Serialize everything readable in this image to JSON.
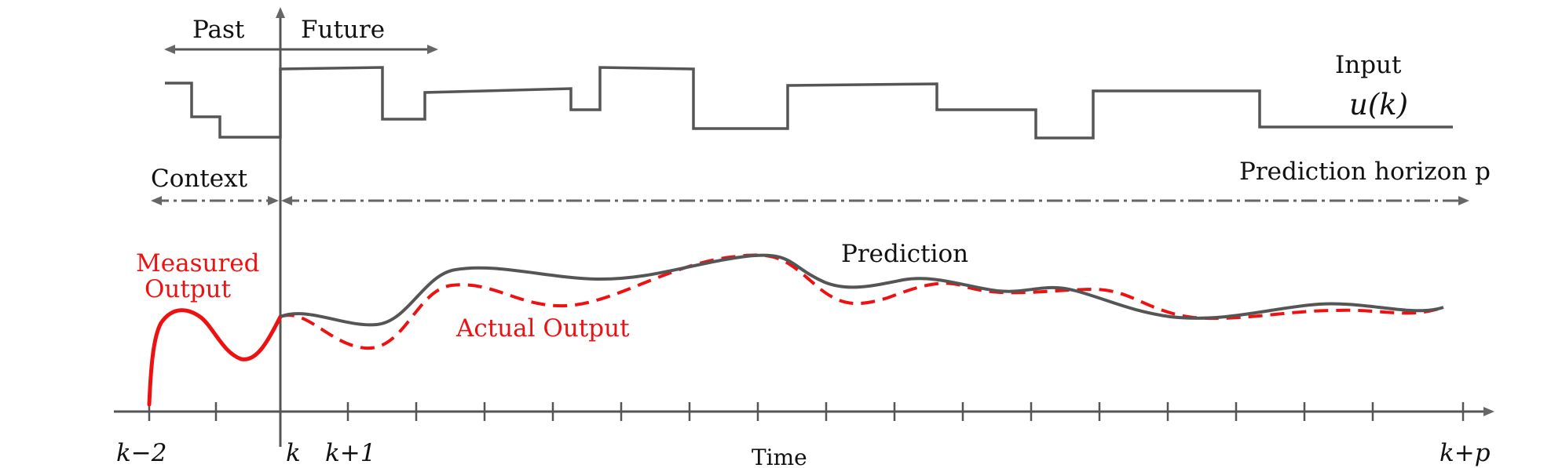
{
  "labels": {
    "past": "Past",
    "future": "Future",
    "input": "Input",
    "input_symbol": "u(k)",
    "context": "Context",
    "prediction_horizon": "Prediction horizon p",
    "measured_output_line1": "Measured",
    "measured_output_line2": "Output",
    "prediction": "Prediction",
    "actual_output": "Actual Output",
    "time": "Time"
  },
  "ticks": {
    "k_minus_2": "k−2",
    "k": "k",
    "k_plus_1": "k+1",
    "k_plus_p": "k+p"
  },
  "colors": {
    "axis": "#555555",
    "input_signal": "#555555",
    "prediction": "#555555",
    "measured_output": "#ee1111",
    "actual_output": "#ee1111",
    "context_arrows": "#666666"
  }
}
